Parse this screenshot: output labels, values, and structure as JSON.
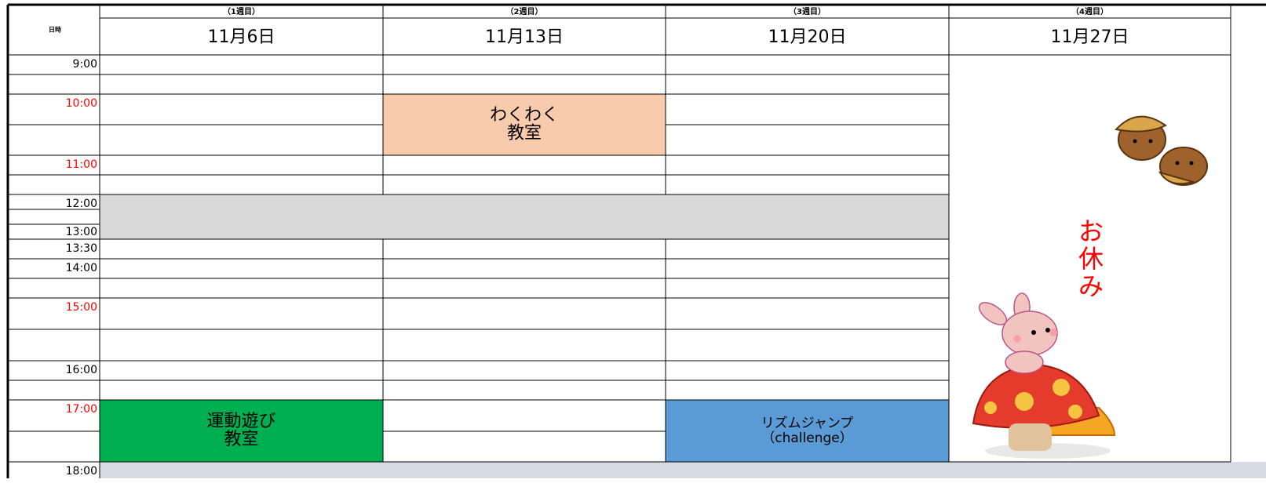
{
  "header": {
    "corner": "日時"
  },
  "weeks": [
    {
      "label": "（1週目）",
      "date": "11月6日"
    },
    {
      "label": "（2週目）",
      "date": "11月13日"
    },
    {
      "label": "（3週目）",
      "date": "11月20日"
    },
    {
      "label": "（4週目）",
      "date": "11月27日"
    }
  ],
  "times": [
    {
      "text": "9:00",
      "color": "#000000"
    },
    {
      "text": "10:00",
      "color": "#ff0000"
    },
    {
      "text": "11:00",
      "color": "#ff0000"
    },
    {
      "text": "12:00",
      "color": "#000000"
    },
    {
      "text": "13:00",
      "color": "#000000"
    },
    {
      "text": "13:30",
      "color": "#000000"
    },
    {
      "text": "14:00",
      "color": "#000000"
    },
    {
      "text": "15:00",
      "color": "#ff0000"
    },
    {
      "text": "16:00",
      "color": "#000000"
    },
    {
      "text": "17:00",
      "color": "#ff0000"
    },
    {
      "text": "18:00",
      "color": "#000000"
    }
  ],
  "events": [
    {
      "lines": [
        "わくわく",
        "教室"
      ],
      "color": "#f8cbad"
    },
    {
      "lines": [
        "運動遊び",
        "教室"
      ],
      "color": "#00b050"
    },
    {
      "lines": [
        "リズムジャンプ",
        "（challenge）"
      ],
      "color": "#5b9bd5"
    }
  ],
  "holiday": {
    "lines": [
      "お",
      "休",
      "み"
    ]
  }
}
